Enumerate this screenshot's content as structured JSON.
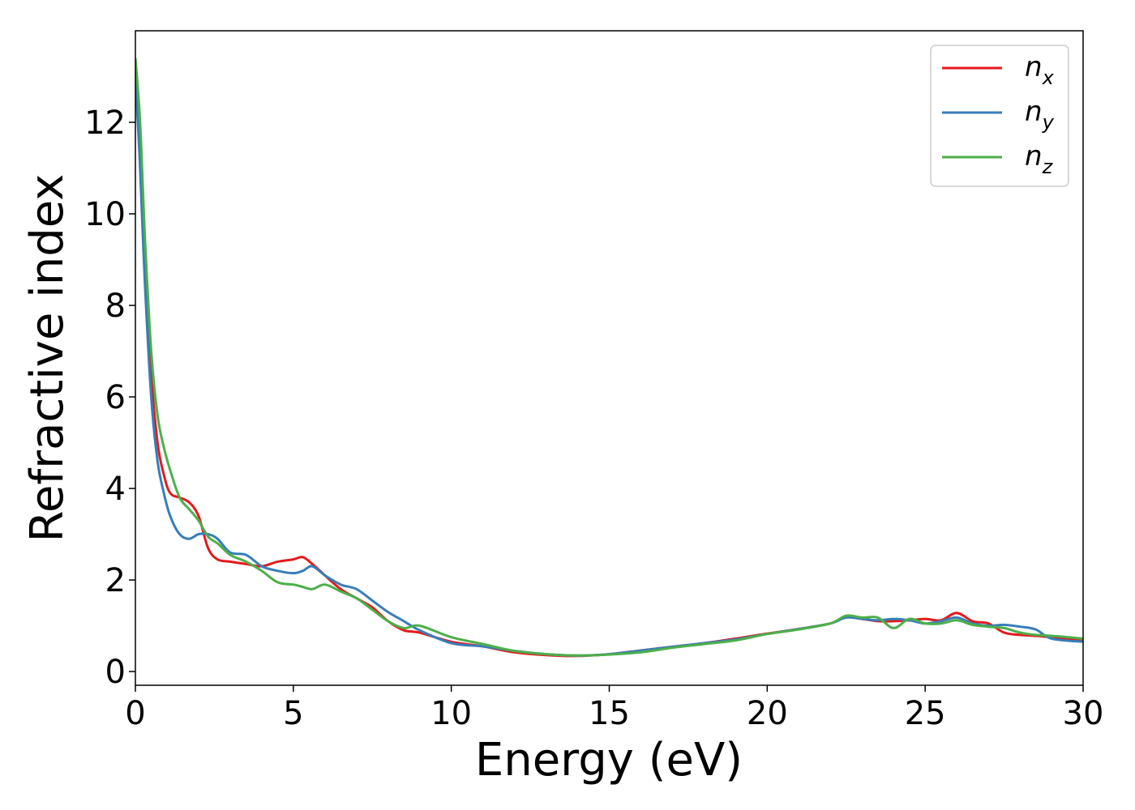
{
  "chart_data": {
    "type": "line",
    "xlabel": "Energy (eV)",
    "ylabel": "Refractive index",
    "xlim": [
      0,
      30
    ],
    "ylim": [
      -0.3,
      14
    ],
    "xticks": [
      0,
      5,
      10,
      15,
      20,
      25,
      30
    ],
    "yticks": [
      0,
      2,
      4,
      6,
      8,
      10,
      12
    ],
    "grid": false,
    "legend_position": "top-right",
    "series": [
      {
        "name": "n_x",
        "legend_base": "n",
        "legend_sub": "x",
        "color": "#e41a1c",
        "x": [
          0,
          0.15,
          0.3,
          0.5,
          0.7,
          0.9,
          1.1,
          1.4,
          1.7,
          2.0,
          2.3,
          2.6,
          3.0,
          3.5,
          4.0,
          4.5,
          5.0,
          5.3,
          5.6,
          6.0,
          6.5,
          7.0,
          7.5,
          8.0,
          8.5,
          9.0,
          10.0,
          11.0,
          12.0,
          13.0,
          14.0,
          15.0,
          16.0,
          17.0,
          18.0,
          19.0,
          20.0,
          21.0,
          22.0,
          22.5,
          23.0,
          23.5,
          24.0,
          24.5,
          25.0,
          25.5,
          26.0,
          26.5,
          27.0,
          27.5,
          28.0,
          28.5,
          29.0,
          30.0
        ],
        "y": [
          13.2,
          11.5,
          8.8,
          6.5,
          5.0,
          4.3,
          3.9,
          3.8,
          3.7,
          3.4,
          2.7,
          2.45,
          2.4,
          2.35,
          2.3,
          2.4,
          2.45,
          2.5,
          2.35,
          2.1,
          1.8,
          1.6,
          1.4,
          1.1,
          0.9,
          0.85,
          0.65,
          0.55,
          0.42,
          0.36,
          0.34,
          0.38,
          0.46,
          0.54,
          0.62,
          0.72,
          0.83,
          0.93,
          1.05,
          1.2,
          1.15,
          1.1,
          1.1,
          1.12,
          1.15,
          1.12,
          1.28,
          1.1,
          1.05,
          0.85,
          0.8,
          0.78,
          0.75,
          0.68
        ]
      },
      {
        "name": "n_y",
        "legend_base": "n",
        "legend_sub": "y",
        "color": "#377eb8",
        "x": [
          0,
          0.15,
          0.3,
          0.5,
          0.7,
          0.9,
          1.1,
          1.4,
          1.7,
          2.0,
          2.3,
          2.6,
          3.0,
          3.5,
          4.0,
          4.5,
          5.0,
          5.3,
          5.6,
          6.0,
          6.5,
          7.0,
          7.5,
          8.0,
          8.5,
          9.0,
          10.0,
          11.0,
          12.0,
          13.0,
          14.0,
          15.0,
          16.0,
          17.0,
          18.0,
          19.0,
          20.0,
          21.0,
          22.0,
          22.5,
          23.0,
          23.5,
          24.0,
          24.5,
          25.0,
          25.5,
          26.0,
          26.5,
          27.0,
          27.5,
          28.0,
          28.5,
          29.0,
          30.0
        ],
        "y": [
          13.0,
          11.0,
          8.5,
          6.0,
          4.6,
          3.9,
          3.4,
          3.0,
          2.9,
          3.0,
          3.0,
          2.9,
          2.6,
          2.55,
          2.3,
          2.2,
          2.15,
          2.2,
          2.3,
          2.1,
          1.9,
          1.8,
          1.55,
          1.3,
          1.1,
          0.9,
          0.62,
          0.55,
          0.45,
          0.38,
          0.35,
          0.38,
          0.46,
          0.54,
          0.62,
          0.7,
          0.82,
          0.93,
          1.05,
          1.18,
          1.15,
          1.12,
          1.15,
          1.12,
          1.05,
          1.1,
          1.18,
          1.05,
          1.0,
          1.02,
          0.98,
          0.92,
          0.72,
          0.65
        ]
      },
      {
        "name": "n_z",
        "legend_base": "n",
        "legend_sub": "z",
        "color": "#4daf4a",
        "x": [
          0,
          0.15,
          0.3,
          0.5,
          0.7,
          0.9,
          1.1,
          1.4,
          1.7,
          2.0,
          2.3,
          2.6,
          3.0,
          3.5,
          4.0,
          4.5,
          5.0,
          5.3,
          5.6,
          6.0,
          6.5,
          7.0,
          7.5,
          8.0,
          8.5,
          9.0,
          10.0,
          11.0,
          12.0,
          13.0,
          14.0,
          15.0,
          16.0,
          17.0,
          18.0,
          19.0,
          20.0,
          21.0,
          22.0,
          22.5,
          23.0,
          23.5,
          24.0,
          24.5,
          25.0,
          25.5,
          26.0,
          26.5,
          27.0,
          27.5,
          28.0,
          28.5,
          29.0,
          30.0
        ],
        "y": [
          13.4,
          12.0,
          9.5,
          7.0,
          5.6,
          4.9,
          4.4,
          3.8,
          3.55,
          3.3,
          2.95,
          2.8,
          2.55,
          2.4,
          2.2,
          1.95,
          1.9,
          1.85,
          1.8,
          1.9,
          1.75,
          1.6,
          1.35,
          1.1,
          0.95,
          1.0,
          0.75,
          0.6,
          0.45,
          0.38,
          0.35,
          0.37,
          0.42,
          0.52,
          0.6,
          0.68,
          0.82,
          0.92,
          1.05,
          1.22,
          1.18,
          1.18,
          0.95,
          1.15,
          1.05,
          1.05,
          1.12,
          1.02,
          0.98,
          0.95,
          0.85,
          0.8,
          0.78,
          0.72
        ]
      }
    ]
  }
}
